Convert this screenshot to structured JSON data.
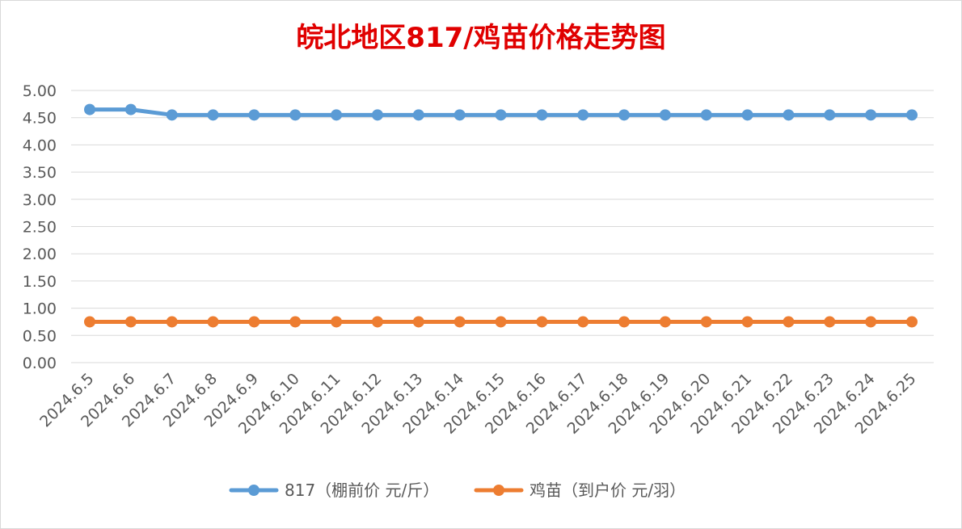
{
  "chart_data": {
    "type": "line",
    "title": "皖北地区817/鸡苗价格走势图",
    "xlabel": "",
    "ylabel": "",
    "ylim": [
      0,
      5
    ],
    "ytick_step": 0.5,
    "ytick_format_decimals": 2,
    "grid": true,
    "legend_position": "bottom",
    "categories": [
      "2024.6.5",
      "2024.6.6",
      "2024.6.7",
      "2024.6.8",
      "2024.6.9",
      "2024.6.10",
      "2024.6.11",
      "2024.6.12",
      "2024.6.13",
      "2024.6.14",
      "2024.6.15",
      "2024.6.16",
      "2024.6.17",
      "2024.6.18",
      "2024.6.19",
      "2024.6.20",
      "2024.6.21",
      "2024.6.22",
      "2024.6.23",
      "2024.6.24",
      "2024.6.25"
    ],
    "series": [
      {
        "name": "817（棚前价 元/斤）",
        "color": "#5b9bd5",
        "values": [
          4.65,
          4.65,
          4.55,
          4.55,
          4.55,
          4.55,
          4.55,
          4.55,
          4.55,
          4.55,
          4.55,
          4.55,
          4.55,
          4.55,
          4.55,
          4.55,
          4.55,
          4.55,
          4.55,
          4.55,
          4.55
        ]
      },
      {
        "name": "鸡苗（到户价 元/羽）",
        "color": "#ed7d31",
        "values": [
          0.75,
          0.75,
          0.75,
          0.75,
          0.75,
          0.75,
          0.75,
          0.75,
          0.75,
          0.75,
          0.75,
          0.75,
          0.75,
          0.75,
          0.75,
          0.75,
          0.75,
          0.75,
          0.75,
          0.75,
          0.75
        ]
      }
    ]
  }
}
